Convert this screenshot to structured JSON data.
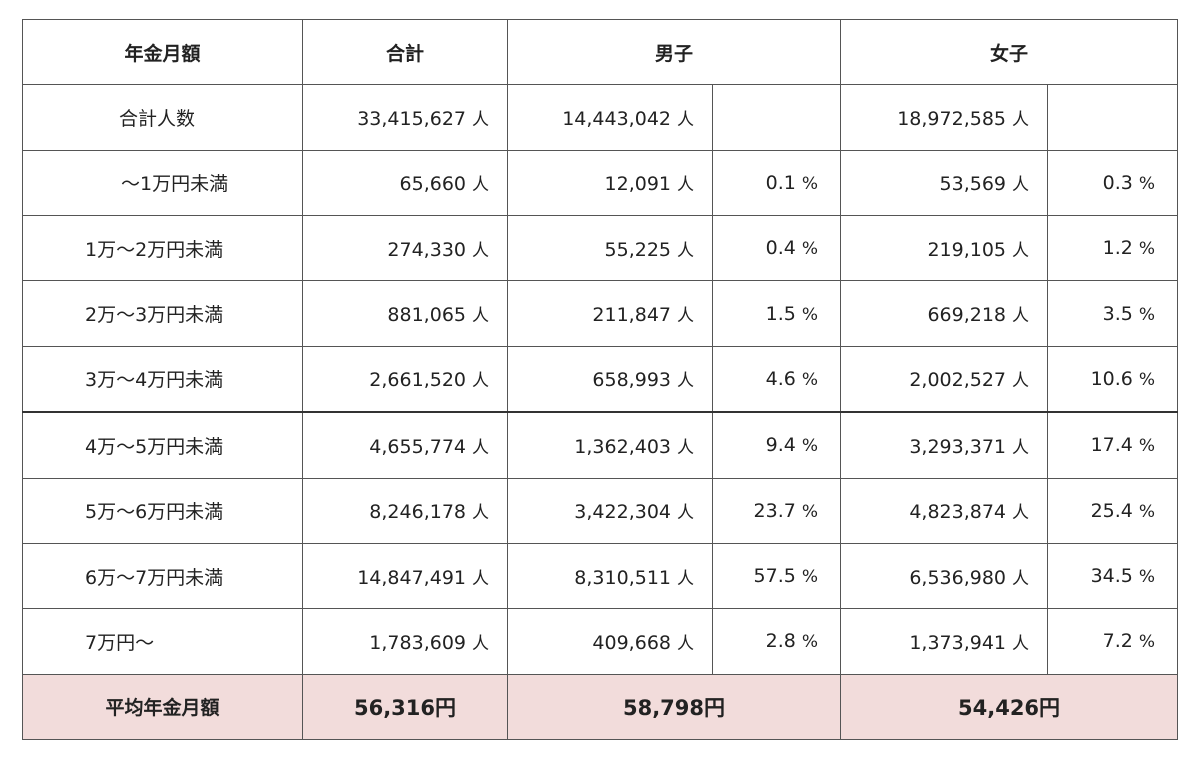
{
  "header": {
    "col_amount": "年金月額",
    "col_total": "合計",
    "col_male": "男子",
    "col_female": "女子"
  },
  "unit_person": "人",
  "unit_percent": "%",
  "total_count": {
    "label": "合計人数",
    "total": "33,415,627",
    "male": "14,443,042",
    "female": "18,972,585"
  },
  "rows": [
    {
      "label": "～1万円未満",
      "total": "65,660",
      "male": "12,091",
      "male_pct": "0.1",
      "female": "53,569",
      "female_pct": "0.3"
    },
    {
      "label": "1万～2万円未満",
      "total": "274,330",
      "male": "55,225",
      "male_pct": "0.4",
      "female": "219,105",
      "female_pct": "1.2"
    },
    {
      "label": "2万～3万円未満",
      "total": "881,065",
      "male": "211,847",
      "male_pct": "1.5",
      "female": "669,218",
      "female_pct": "3.5"
    },
    {
      "label": "3万～4万円未満",
      "total": "2,661,520",
      "male": "658,993",
      "male_pct": "4.6",
      "female": "2,002,527",
      "female_pct": "10.6"
    },
    {
      "label": "4万～5万円未満",
      "total": "4,655,774",
      "male": "1,362,403",
      "male_pct": "9.4",
      "female": "3,293,371",
      "female_pct": "17.4"
    },
    {
      "label": "5万～6万円未満",
      "total": "8,246,178",
      "male": "3,422,304",
      "male_pct": "23.7",
      "female": "4,823,874",
      "female_pct": "25.4"
    },
    {
      "label": "6万～7万円未満",
      "total": "14,847,491",
      "male": "8,310,511",
      "male_pct": "57.5",
      "female": "6,536,980",
      "female_pct": "34.5"
    },
    {
      "label": "7万円～",
      "total": "1,783,609",
      "male": "409,668",
      "male_pct": "2.8",
      "female": "1,373,941",
      "female_pct": "7.2"
    }
  ],
  "average": {
    "label": "平均年金月額",
    "total": "56,316円",
    "male": "58,798円",
    "female": "54,426円"
  },
  "colors": {
    "average_row_bg": "#f2dcdb",
    "border": "#555555"
  }
}
